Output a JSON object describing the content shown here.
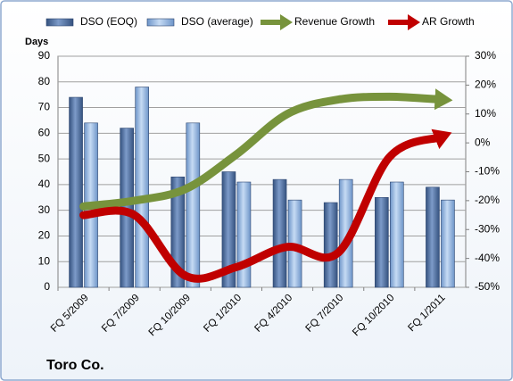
{
  "chart_data": {
    "type": "bar-line",
    "title": "Toro Co.",
    "y_label": "Days",
    "categories": [
      "FQ 5/2009",
      "FQ 7/2009",
      "FQ 10/2009",
      "FQ 1/2010",
      "FQ 4/2010",
      "FQ 7/2010",
      "FQ 10/2010",
      "FQ 1/2011"
    ],
    "series": [
      {
        "name": "DSO (EOQ)",
        "type": "bar",
        "color": "#4a6b9e",
        "values": [
          74,
          62,
          43,
          45,
          42,
          33,
          35,
          39
        ]
      },
      {
        "name": "DSO (average)",
        "type": "bar",
        "color": "#8eb4e3",
        "values": [
          64,
          78,
          64,
          41,
          34,
          42,
          41,
          34
        ]
      },
      {
        "name": "Revenue Growth",
        "type": "line",
        "axis": "y2",
        "color": "#77933c",
        "values": [
          -22,
          -20,
          -16,
          -4,
          10,
          15,
          16,
          15
        ]
      },
      {
        "name": "AR Growth",
        "type": "line",
        "axis": "y2",
        "color": "#c00000",
        "values": [
          -25,
          -25,
          -46,
          -43,
          -36,
          -38,
          -5,
          2
        ]
      }
    ],
    "ylim": [
      0,
      90
    ],
    "yticks": [
      0,
      10,
      20,
      30,
      40,
      50,
      60,
      70,
      80,
      90
    ],
    "y2lim": [
      -50,
      30
    ],
    "y2ticks": [
      {
        "value": -50,
        "label": "-50%"
      },
      {
        "value": -40,
        "label": "-40%"
      },
      {
        "value": -30,
        "label": "-30%"
      },
      {
        "value": -20,
        "label": "-20%"
      },
      {
        "value": -10,
        "label": "-10%"
      },
      {
        "value": 0,
        "label": "0%"
      },
      {
        "value": 10,
        "label": "10%"
      },
      {
        "value": 20,
        "label": "20%"
      },
      {
        "value": 30,
        "label": "30%"
      }
    ],
    "grid": true,
    "legend": "top"
  }
}
